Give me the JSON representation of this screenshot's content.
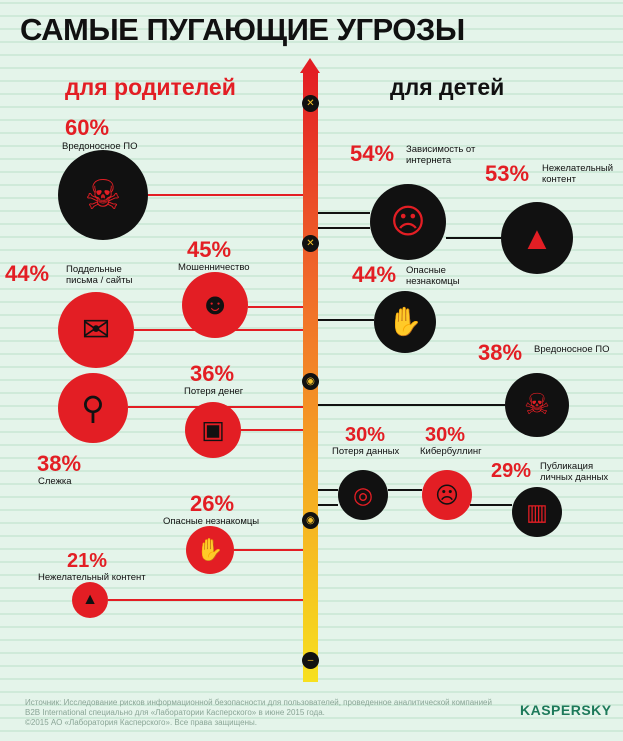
{
  "title": "САМЫЕ ПУГАЮЩИЕ УГРОЗЫ",
  "parents_heading": "для родителей",
  "children_heading": "для детей",
  "colors": {
    "red": "#e31e24",
    "black": "#111111",
    "background": "#e4f4ea"
  },
  "parents": [
    {
      "percent": "60%",
      "label": "Вредоносное ПО",
      "icon": "malware-icon"
    },
    {
      "percent": "44%",
      "label": "Поддельные письма / сайты",
      "icon": "envelope-icon"
    },
    {
      "percent": "45%",
      "label": "Мошенничество",
      "icon": "burglar-icon"
    },
    {
      "percent": "36%",
      "label": "Потеря денег",
      "icon": "wallet-icon"
    },
    {
      "percent": "38%",
      "label": "Слежка",
      "icon": "magnifier-icon"
    },
    {
      "percent": "26%",
      "label": "Опасные незнакомцы",
      "icon": "hand-icon"
    },
    {
      "percent": "21%",
      "label": "Нежелательный контент",
      "icon": "traffic-cone-icon"
    }
  ],
  "children": [
    {
      "percent": "54%",
      "label": "Зависимость от интернета",
      "icon": "dizzy-face-icon"
    },
    {
      "percent": "53%",
      "label": "Нежелательный контент",
      "icon": "traffic-cone-icon"
    },
    {
      "percent": "44%",
      "label": "Опасные незнакомцы",
      "icon": "hand-icon"
    },
    {
      "percent": "38%",
      "label": "Вредоносное ПО",
      "icon": "malware-icon"
    },
    {
      "percent": "30%",
      "label": "Потеря данных",
      "icon": "speaker-icon"
    },
    {
      "percent": "30%",
      "label": "Кибербуллинг",
      "icon": "crying-face-icon"
    },
    {
      "percent": "29%",
      "label": "Публикация личных данных",
      "icon": "trash-icon"
    }
  ],
  "footer": {
    "source": "Источник: Исследование рисков информационной безопасности для пользователей, проведенное аналитической компанией B2B International специально для «Лаборатории Касперского» в июне 2015 года.",
    "copyright": "©2015 АО «Лаборатория Касперского». Все права защищены."
  },
  "logo": "KASPERSKY"
}
